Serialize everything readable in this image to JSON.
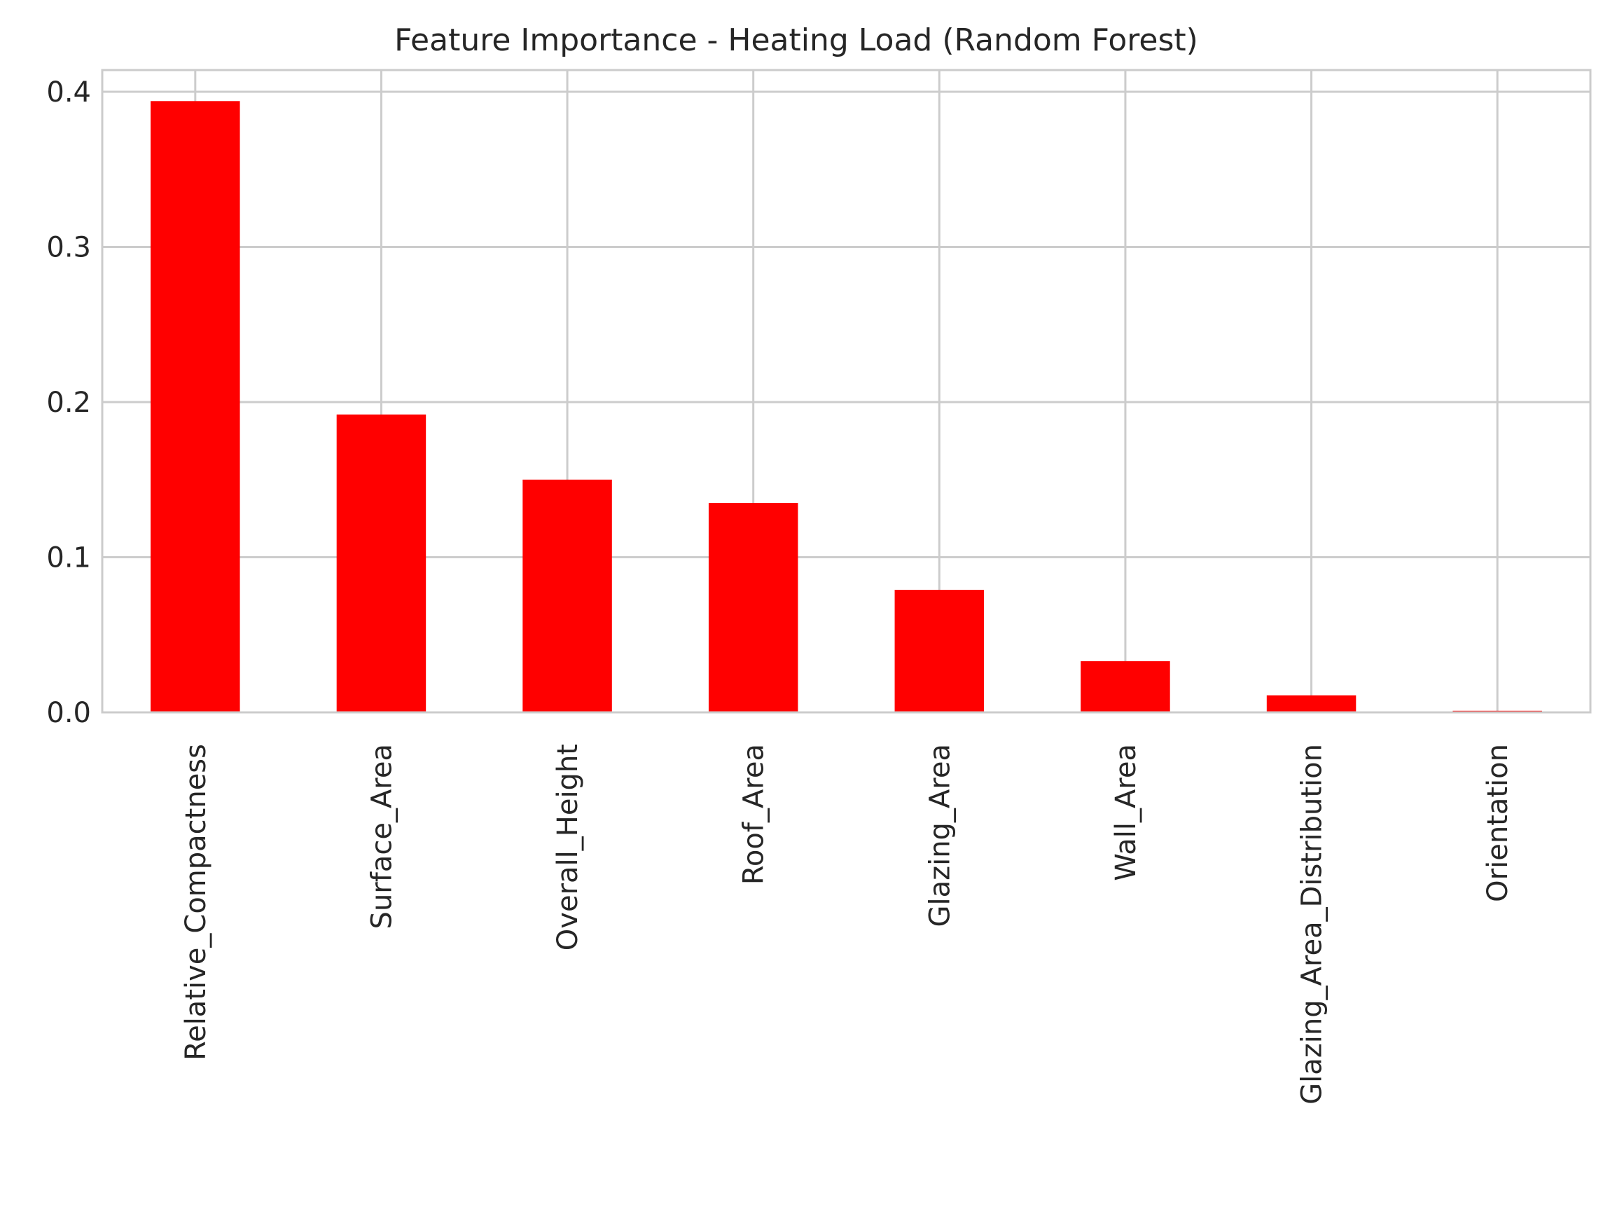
{
  "chart_data": {
    "type": "bar",
    "title": "Feature Importance - Heating Load (Random Forest)",
    "xlabel": "",
    "ylabel": "",
    "categories": [
      "Relative_Compactness",
      "Surface_Area",
      "Overall_Height",
      "Roof_Area",
      "Glazing_Area",
      "Wall_Area",
      "Glazing_Area_Distribution",
      "Orientation"
    ],
    "values": [
      0.394,
      0.192,
      0.15,
      0.135,
      0.079,
      0.033,
      0.011,
      0.001
    ],
    "yticks": [
      "0.0",
      "0.1",
      "0.2",
      "0.3",
      "0.4"
    ],
    "ylim": [
      0,
      0.414
    ],
    "grid": true,
    "colors": {
      "bar": "#ff0000",
      "grid": "#cccccc",
      "axes": "#cccccc",
      "text": "#262626"
    }
  }
}
